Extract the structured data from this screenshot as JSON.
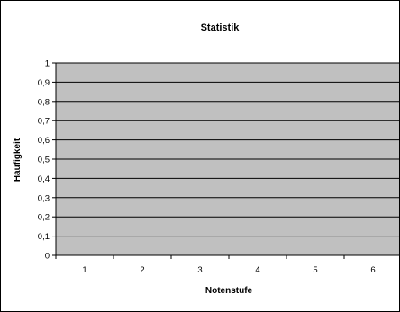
{
  "chart_data": {
    "type": "bar",
    "title": "Statistik",
    "xlabel": "Notenstufe",
    "ylabel": "Häufigkeit",
    "categories": [
      "1",
      "2",
      "3",
      "4",
      "5",
      "6"
    ],
    "series": [
      {
        "values": [
          0,
          0,
          0,
          0,
          0,
          0
        ]
      }
    ],
    "ylim": [
      0,
      1
    ],
    "yticks": [
      0,
      0.1,
      0.2,
      0.3,
      0.4,
      0.5,
      0.6,
      0.7,
      0.8,
      0.9,
      1
    ],
    "ytick_labels": [
      "0",
      "0,1",
      "0,2",
      "0,3",
      "0,4",
      "0,5",
      "0,6",
      "0,7",
      "0,8",
      "0,9",
      "1"
    ],
    "grid": true,
    "legend": "none",
    "colors": {
      "plot_area": "#c0c0c0",
      "gridline": "#000000",
      "background": "#ffffff"
    }
  }
}
